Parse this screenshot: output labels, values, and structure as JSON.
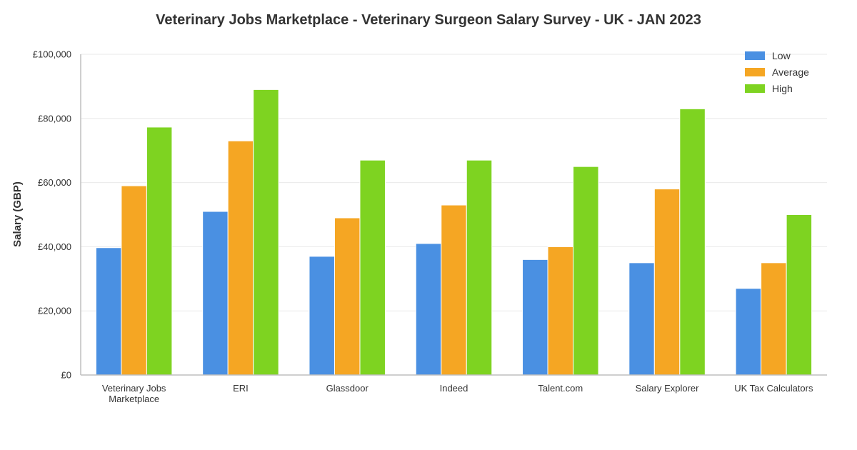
{
  "chart_data": {
    "type": "bar",
    "title": "Veterinary Jobs Marketplace - Veterinary Surgeon Salary Survey - UK - JAN 2023",
    "xlabel": "",
    "ylabel": "Salary (GBP)",
    "ylim": [
      0,
      100000
    ],
    "yticks": [
      {
        "value": 0,
        "label": "£0"
      },
      {
        "value": 20000,
        "label": "£20,000"
      },
      {
        "value": 40000,
        "label": "£40,000"
      },
      {
        "value": 60000,
        "label": "£60,000"
      },
      {
        "value": 80000,
        "label": "£80,000"
      },
      {
        "value": 100000,
        "label": "£100,000"
      }
    ],
    "categories": [
      [
        "Veterinary Jobs",
        "Marketplace"
      ],
      [
        "ERI"
      ],
      [
        "Glassdoor"
      ],
      [
        "Indeed"
      ],
      [
        "Talent.com"
      ],
      [
        "Salary Explorer"
      ],
      [
        "UK Tax Calculators"
      ]
    ],
    "series": [
      {
        "name": "Low",
        "color": "#4a90e2",
        "values": [
          39700,
          51000,
          37000,
          41000,
          36000,
          35000,
          27000
        ]
      },
      {
        "name": "Average",
        "color": "#f5a623",
        "values": [
          59000,
          73000,
          49000,
          53000,
          40000,
          58000,
          35000
        ]
      },
      {
        "name": "High",
        "color": "#7ed321",
        "values": [
          77300,
          89000,
          67000,
          67000,
          65000,
          83000,
          50000
        ]
      }
    ],
    "grid": true,
    "legend_position": "top-right"
  }
}
